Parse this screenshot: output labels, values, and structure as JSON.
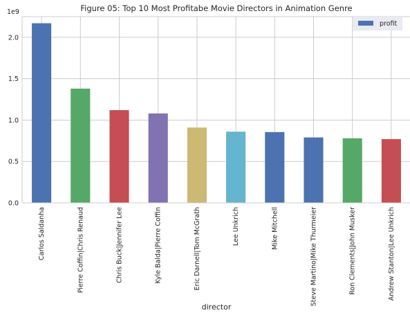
{
  "chart_data": {
    "type": "bar",
    "title": "Figure 05: Top 10 Most Profitabe Movie Directors in Animation Genre",
    "xlabel": "director",
    "ylabel": "",
    "y_offset_label": "1e9",
    "ylim": [
      0,
      2.25
    ],
    "y_ticks": [
      "0.0",
      "0.5",
      "1.0",
      "1.5",
      "2.0"
    ],
    "grid": true,
    "legend_position": "top-right",
    "categories": [
      "Carlos Saldanha",
      "Pierre Coffin|Chris Renaud",
      "Chris Buck|Jennifer Lee",
      "Kyle Balda|Pierre Coffin",
      "Eric Darnell|Tom McGrath",
      "Lee Unkrich",
      "Mike Mitchell",
      "Steve Martino|Mike Thurmeier",
      "Ron Clements|John Musker",
      "Andrew Stanton|Lee Unkrich"
    ],
    "series": [
      {
        "name": "profit",
        "values": [
          2.17,
          1.38,
          1.12,
          1.08,
          0.91,
          0.86,
          0.855,
          0.79,
          0.78,
          0.77
        ],
        "legend_color": "#4c72b0"
      }
    ],
    "bar_colors": [
      "#4c72b0",
      "#55a868",
      "#c44e52",
      "#8172b2",
      "#ccb974",
      "#64b5cd",
      "#4c72b0",
      "#4c72b0",
      "#55a868",
      "#c44e52"
    ]
  }
}
